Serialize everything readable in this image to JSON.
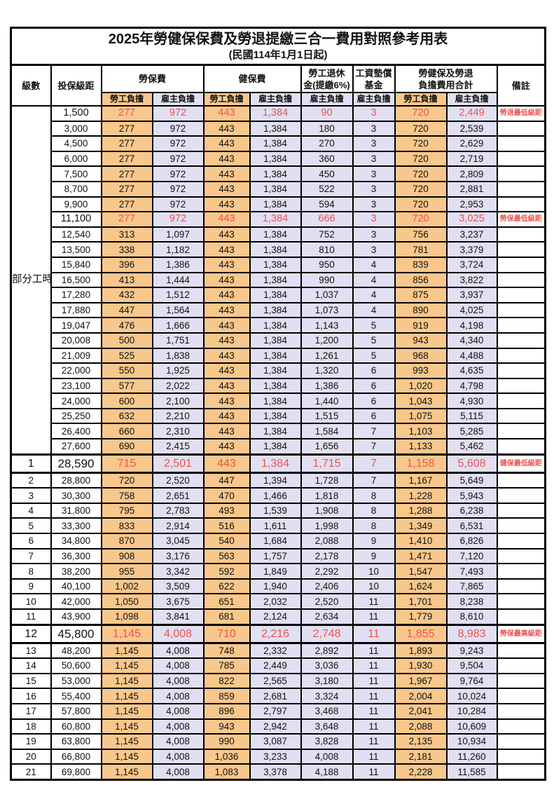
{
  "title": "2025年勞健保保費及勞退提繳三合一費用對照參考用表",
  "subtitle": "(民國114年1月1日起)",
  "columns": {
    "level": "級數",
    "bracket": "投保級距",
    "labor_fee": "勞保費",
    "health_fee": "健保費",
    "pension_line1": "勞工退休",
    "pension_line2": "金(提繳6%)",
    "fund_line1": "工資墊償",
    "fund_line2": "基金",
    "total_line1": "勞健保及勞退",
    "total_line2": "負擔費用合計",
    "note": "備註",
    "employee_share": "勞工負擔",
    "employer_share": "雇主負擔"
  },
  "part_time_label": "部分工時",
  "colors": {
    "employee_bg": "#F8C78C",
    "employer_bg": "#E1E0F2",
    "highlight_red": "#F0524E",
    "border": "#000000"
  },
  "rows": [
    {
      "level": "",
      "bracket": "1,500",
      "labor_emp": "277",
      "labor_er": "972",
      "health_emp": "443",
      "health_er": "1,384",
      "pension_er": "90",
      "fund_er": "3",
      "total_emp": "720",
      "total_er": "2,449",
      "note": "勞退最低級距",
      "highlight": true,
      "large": false
    },
    {
      "level": "",
      "bracket": "3,000",
      "labor_emp": "277",
      "labor_er": "972",
      "health_emp": "443",
      "health_er": "1,384",
      "pension_er": "180",
      "fund_er": "3",
      "total_emp": "720",
      "total_er": "2,539",
      "note": "",
      "highlight": false,
      "large": false
    },
    {
      "level": "",
      "bracket": "4,500",
      "labor_emp": "277",
      "labor_er": "972",
      "health_emp": "443",
      "health_er": "1,384",
      "pension_er": "270",
      "fund_er": "3",
      "total_emp": "720",
      "total_er": "2,629",
      "note": "",
      "highlight": false,
      "large": false
    },
    {
      "level": "",
      "bracket": "6,000",
      "labor_emp": "277",
      "labor_er": "972",
      "health_emp": "443",
      "health_er": "1,384",
      "pension_er": "360",
      "fund_er": "3",
      "total_emp": "720",
      "total_er": "2,719",
      "note": "",
      "highlight": false,
      "large": false
    },
    {
      "level": "",
      "bracket": "7,500",
      "labor_emp": "277",
      "labor_er": "972",
      "health_emp": "443",
      "health_er": "1,384",
      "pension_er": "450",
      "fund_er": "3",
      "total_emp": "720",
      "total_er": "2,809",
      "note": "",
      "highlight": false,
      "large": false
    },
    {
      "level": "",
      "bracket": "8,700",
      "labor_emp": "277",
      "labor_er": "972",
      "health_emp": "443",
      "health_er": "1,384",
      "pension_er": "522",
      "fund_er": "3",
      "total_emp": "720",
      "total_er": "2,881",
      "note": "",
      "highlight": false,
      "large": false
    },
    {
      "level": "",
      "bracket": "9,900",
      "labor_emp": "277",
      "labor_er": "972",
      "health_emp": "443",
      "health_er": "1,384",
      "pension_er": "594",
      "fund_er": "3",
      "total_emp": "720",
      "total_er": "2,953",
      "note": "",
      "highlight": false,
      "large": false
    },
    {
      "level": "",
      "bracket": "11,100",
      "labor_emp": "277",
      "labor_er": "972",
      "health_emp": "443",
      "health_er": "1,384",
      "pension_er": "666",
      "fund_er": "3",
      "total_emp": "720",
      "total_er": "3,025",
      "note": "勞保最低級距",
      "highlight": true,
      "large": false
    },
    {
      "level": "",
      "bracket": "12,540",
      "labor_emp": "313",
      "labor_er": "1,097",
      "health_emp": "443",
      "health_er": "1,384",
      "pension_er": "752",
      "fund_er": "3",
      "total_emp": "756",
      "total_er": "3,237",
      "note": "",
      "highlight": false,
      "large": false
    },
    {
      "level": "",
      "bracket": "13,500",
      "labor_emp": "338",
      "labor_er": "1,182",
      "health_emp": "443",
      "health_er": "1,384",
      "pension_er": "810",
      "fund_er": "3",
      "total_emp": "781",
      "total_er": "3,379",
      "note": "",
      "highlight": false,
      "large": false
    },
    {
      "level": "",
      "bracket": "15,840",
      "labor_emp": "396",
      "labor_er": "1,386",
      "health_emp": "443",
      "health_er": "1,384",
      "pension_er": "950",
      "fund_er": "4",
      "total_emp": "839",
      "total_er": "3,724",
      "note": "",
      "highlight": false,
      "large": false
    },
    {
      "level": "",
      "bracket": "16,500",
      "labor_emp": "413",
      "labor_er": "1,444",
      "health_emp": "443",
      "health_er": "1,384",
      "pension_er": "990",
      "fund_er": "4",
      "total_emp": "856",
      "total_er": "3,822",
      "note": "",
      "highlight": false,
      "large": false
    },
    {
      "level": "",
      "bracket": "17,280",
      "labor_emp": "432",
      "labor_er": "1,512",
      "health_emp": "443",
      "health_er": "1,384",
      "pension_er": "1,037",
      "fund_er": "4",
      "total_emp": "875",
      "total_er": "3,937",
      "note": "",
      "highlight": false,
      "large": false
    },
    {
      "level": "",
      "bracket": "17,880",
      "labor_emp": "447",
      "labor_er": "1,564",
      "health_emp": "443",
      "health_er": "1,384",
      "pension_er": "1,073",
      "fund_er": "4",
      "total_emp": "890",
      "total_er": "4,025",
      "note": "",
      "highlight": false,
      "large": false
    },
    {
      "level": "",
      "bracket": "19,047",
      "labor_emp": "476",
      "labor_er": "1,666",
      "health_emp": "443",
      "health_er": "1,384",
      "pension_er": "1,143",
      "fund_er": "5",
      "total_emp": "919",
      "total_er": "4,198",
      "note": "",
      "highlight": false,
      "large": false
    },
    {
      "level": "",
      "bracket": "20,008",
      "labor_emp": "500",
      "labor_er": "1,751",
      "health_emp": "443",
      "health_er": "1,384",
      "pension_er": "1,200",
      "fund_er": "5",
      "total_emp": "943",
      "total_er": "4,340",
      "note": "",
      "highlight": false,
      "large": false
    },
    {
      "level": "",
      "bracket": "21,009",
      "labor_emp": "525",
      "labor_er": "1,838",
      "health_emp": "443",
      "health_er": "1,384",
      "pension_er": "1,261",
      "fund_er": "5",
      "total_emp": "968",
      "total_er": "4,488",
      "note": "",
      "highlight": false,
      "large": false
    },
    {
      "level": "",
      "bracket": "22,000",
      "labor_emp": "550",
      "labor_er": "1,925",
      "health_emp": "443",
      "health_er": "1,384",
      "pension_er": "1,320",
      "fund_er": "6",
      "total_emp": "993",
      "total_er": "4,635",
      "note": "",
      "highlight": false,
      "large": false
    },
    {
      "level": "",
      "bracket": "23,100",
      "labor_emp": "577",
      "labor_er": "2,022",
      "health_emp": "443",
      "health_er": "1,384",
      "pension_er": "1,386",
      "fund_er": "6",
      "total_emp": "1,020",
      "total_er": "4,798",
      "note": "",
      "highlight": false,
      "large": false
    },
    {
      "level": "",
      "bracket": "24,000",
      "labor_emp": "600",
      "labor_er": "2,100",
      "health_emp": "443",
      "health_er": "1,384",
      "pension_er": "1,440",
      "fund_er": "6",
      "total_emp": "1,043",
      "total_er": "4,930",
      "note": "",
      "highlight": false,
      "large": false
    },
    {
      "level": "",
      "bracket": "25,250",
      "labor_emp": "632",
      "labor_er": "2,210",
      "health_emp": "443",
      "health_er": "1,384",
      "pension_er": "1,515",
      "fund_er": "6",
      "total_emp": "1,075",
      "total_er": "5,115",
      "note": "",
      "highlight": false,
      "large": false
    },
    {
      "level": "",
      "bracket": "26,400",
      "labor_emp": "660",
      "labor_er": "2,310",
      "health_emp": "443",
      "health_er": "1,384",
      "pension_er": "1,584",
      "fund_er": "7",
      "total_emp": "1,103",
      "total_er": "5,285",
      "note": "",
      "highlight": false,
      "large": false
    },
    {
      "level": "",
      "bracket": "27,600",
      "labor_emp": "690",
      "labor_er": "2,415",
      "health_emp": "443",
      "health_er": "1,384",
      "pension_er": "1,656",
      "fund_er": "7",
      "total_emp": "1,133",
      "total_er": "5,462",
      "note": "",
      "highlight": false,
      "large": false
    },
    {
      "level": "1",
      "bracket": "28,590",
      "labor_emp": "715",
      "labor_er": "2,501",
      "health_emp": "443",
      "health_er": "1,384",
      "pension_er": "1,715",
      "fund_er": "7",
      "total_emp": "1,158",
      "total_er": "5,608",
      "note": "健保最低級距",
      "highlight": true,
      "large": true
    },
    {
      "level": "2",
      "bracket": "28,800",
      "labor_emp": "720",
      "labor_er": "2,520",
      "health_emp": "447",
      "health_er": "1,394",
      "pension_er": "1,728",
      "fund_er": "7",
      "total_emp": "1,167",
      "total_er": "5,649",
      "note": "",
      "highlight": false,
      "large": false
    },
    {
      "level": "3",
      "bracket": "30,300",
      "labor_emp": "758",
      "labor_er": "2,651",
      "health_emp": "470",
      "health_er": "1,466",
      "pension_er": "1,818",
      "fund_er": "8",
      "total_emp": "1,228",
      "total_er": "5,943",
      "note": "",
      "highlight": false,
      "large": false
    },
    {
      "level": "4",
      "bracket": "31,800",
      "labor_emp": "795",
      "labor_er": "2,783",
      "health_emp": "493",
      "health_er": "1,539",
      "pension_er": "1,908",
      "fund_er": "8",
      "total_emp": "1,288",
      "total_er": "6,238",
      "note": "",
      "highlight": false,
      "large": false
    },
    {
      "level": "5",
      "bracket": "33,300",
      "labor_emp": "833",
      "labor_er": "2,914",
      "health_emp": "516",
      "health_er": "1,611",
      "pension_er": "1,998",
      "fund_er": "8",
      "total_emp": "1,349",
      "total_er": "6,531",
      "note": "",
      "highlight": false,
      "large": false
    },
    {
      "level": "6",
      "bracket": "34,800",
      "labor_emp": "870",
      "labor_er": "3,045",
      "health_emp": "540",
      "health_er": "1,684",
      "pension_er": "2,088",
      "fund_er": "9",
      "total_emp": "1,410",
      "total_er": "6,826",
      "note": "",
      "highlight": false,
      "large": false
    },
    {
      "level": "7",
      "bracket": "36,300",
      "labor_emp": "908",
      "labor_er": "3,176",
      "health_emp": "563",
      "health_er": "1,757",
      "pension_er": "2,178",
      "fund_er": "9",
      "total_emp": "1,471",
      "total_er": "7,120",
      "note": "",
      "highlight": false,
      "large": false
    },
    {
      "level": "8",
      "bracket": "38,200",
      "labor_emp": "955",
      "labor_er": "3,342",
      "health_emp": "592",
      "health_er": "1,849",
      "pension_er": "2,292",
      "fund_er": "10",
      "total_emp": "1,547",
      "total_er": "7,493",
      "note": "",
      "highlight": false,
      "large": false
    },
    {
      "level": "9",
      "bracket": "40,100",
      "labor_emp": "1,002",
      "labor_er": "3,509",
      "health_emp": "622",
      "health_er": "1,940",
      "pension_er": "2,406",
      "fund_er": "10",
      "total_emp": "1,624",
      "total_er": "7,865",
      "note": "",
      "highlight": false,
      "large": false
    },
    {
      "level": "10",
      "bracket": "42,000",
      "labor_emp": "1,050",
      "labor_er": "3,675",
      "health_emp": "651",
      "health_er": "2,032",
      "pension_er": "2,520",
      "fund_er": "11",
      "total_emp": "1,701",
      "total_er": "8,238",
      "note": "",
      "highlight": false,
      "large": false
    },
    {
      "level": "11",
      "bracket": "43,900",
      "labor_emp": "1,098",
      "labor_er": "3,841",
      "health_emp": "681",
      "health_er": "2,124",
      "pension_er": "2,634",
      "fund_er": "11",
      "total_emp": "1,779",
      "total_er": "8,610",
      "note": "",
      "highlight": false,
      "large": false
    },
    {
      "level": "12",
      "bracket": "45,800",
      "labor_emp": "1,145",
      "labor_er": "4,008",
      "health_emp": "710",
      "health_er": "2,216",
      "pension_er": "2,748",
      "fund_er": "11",
      "total_emp": "1,855",
      "total_er": "8,983",
      "note": "勞保最高級距",
      "highlight": true,
      "large": true
    },
    {
      "level": "13",
      "bracket": "48,200",
      "labor_emp": "1,145",
      "labor_er": "4,008",
      "health_emp": "748",
      "health_er": "2,332",
      "pension_er": "2,892",
      "fund_er": "11",
      "total_emp": "1,893",
      "total_er": "9,243",
      "note": "",
      "highlight": false,
      "large": false
    },
    {
      "level": "14",
      "bracket": "50,600",
      "labor_emp": "1,145",
      "labor_er": "4,008",
      "health_emp": "785",
      "health_er": "2,449",
      "pension_er": "3,036",
      "fund_er": "11",
      "total_emp": "1,930",
      "total_er": "9,504",
      "note": "",
      "highlight": false,
      "large": false
    },
    {
      "level": "15",
      "bracket": "53,000",
      "labor_emp": "1,145",
      "labor_er": "4,008",
      "health_emp": "822",
      "health_er": "2,565",
      "pension_er": "3,180",
      "fund_er": "11",
      "total_emp": "1,967",
      "total_er": "9,764",
      "note": "",
      "highlight": false,
      "large": false
    },
    {
      "level": "16",
      "bracket": "55,400",
      "labor_emp": "1,145",
      "labor_er": "4,008",
      "health_emp": "859",
      "health_er": "2,681",
      "pension_er": "3,324",
      "fund_er": "11",
      "total_emp": "2,004",
      "total_er": "10,024",
      "note": "",
      "highlight": false,
      "large": false
    },
    {
      "level": "17",
      "bracket": "57,800",
      "labor_emp": "1,145",
      "labor_er": "4,008",
      "health_emp": "896",
      "health_er": "2,797",
      "pension_er": "3,468",
      "fund_er": "11",
      "total_emp": "2,041",
      "total_er": "10,284",
      "note": "",
      "highlight": false,
      "large": false
    },
    {
      "level": "18",
      "bracket": "60,800",
      "labor_emp": "1,145",
      "labor_er": "4,008",
      "health_emp": "943",
      "health_er": "2,942",
      "pension_er": "3,648",
      "fund_er": "11",
      "total_emp": "2,088",
      "total_er": "10,609",
      "note": "",
      "highlight": false,
      "large": false
    },
    {
      "level": "19",
      "bracket": "63,800",
      "labor_emp": "1,145",
      "labor_er": "4,008",
      "health_emp": "990",
      "health_er": "3,087",
      "pension_er": "3,828",
      "fund_er": "11",
      "total_emp": "2,135",
      "total_er": "10,934",
      "note": "",
      "highlight": false,
      "large": false
    },
    {
      "level": "20",
      "bracket": "66,800",
      "labor_emp": "1,145",
      "labor_er": "4,008",
      "health_emp": "1,036",
      "health_er": "3,233",
      "pension_er": "4,008",
      "fund_er": "11",
      "total_emp": "2,181",
      "total_er": "11,260",
      "note": "",
      "highlight": false,
      "large": false
    },
    {
      "level": "21",
      "bracket": "69,800",
      "labor_emp": "1,145",
      "labor_er": "4,008",
      "health_emp": "1,083",
      "health_er": "3,378",
      "pension_er": "4,188",
      "fund_er": "11",
      "total_emp": "2,228",
      "total_er": "11,585",
      "note": "",
      "highlight": false,
      "large": false
    }
  ]
}
